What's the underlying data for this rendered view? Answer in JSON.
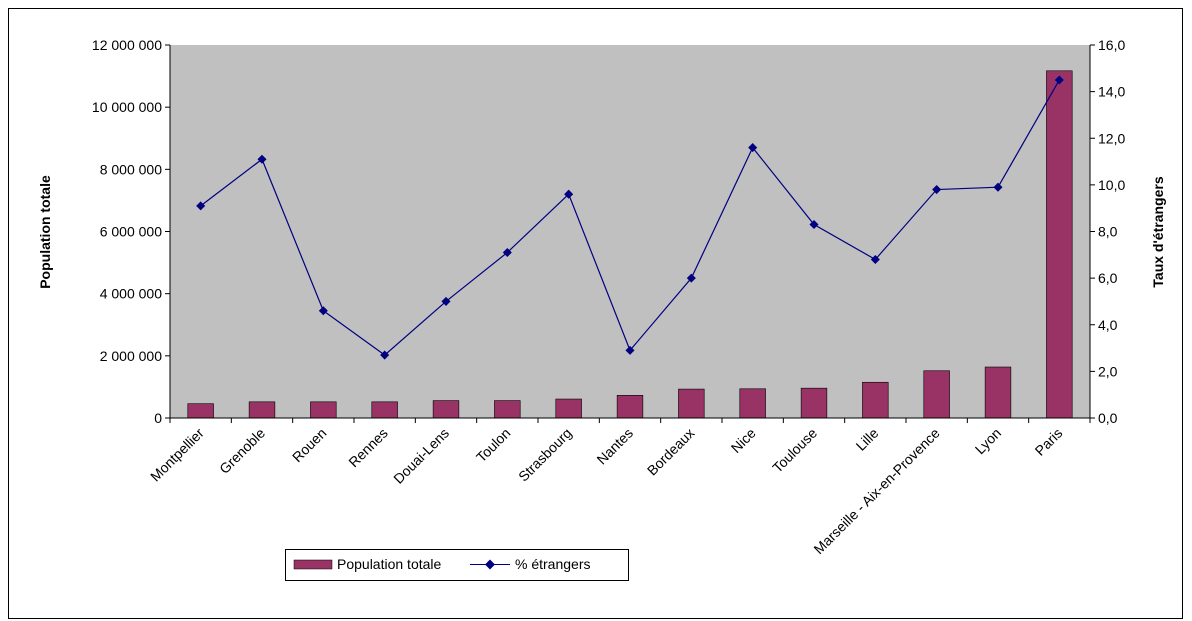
{
  "chart_data": {
    "type": "bar",
    "title": "",
    "categories": [
      "Montpellier",
      "Grenoble",
      "Rouen",
      "Rennes",
      "Douai-Lens",
      "Toulon",
      "Strasbourg",
      "Nantes",
      "Bordeaux",
      "Nice",
      "Toulouse",
      "Lille",
      "Marseille - Aix-en-Provence",
      "Lyon",
      "Paris"
    ],
    "series": [
      {
        "name": "Population totale",
        "type": "bar",
        "axis": "left",
        "color": "#993366",
        "values": [
          460000,
          520000,
          520000,
          520000,
          560000,
          560000,
          610000,
          730000,
          930000,
          940000,
          960000,
          1150000,
          1520000,
          1640000,
          11170000
        ]
      },
      {
        "name": "% étrangers",
        "type": "line",
        "axis": "right",
        "color": "#000080",
        "values": [
          9.1,
          11.1,
          4.6,
          2.7,
          5.0,
          7.1,
          9.6,
          2.9,
          6.0,
          11.6,
          8.3,
          6.8,
          9.8,
          9.9,
          14.5
        ]
      }
    ],
    "ylabel": "Population totale",
    "y2label": "Taux d'étrangers",
    "ylim": [
      0,
      12000000
    ],
    "y2lim": [
      0,
      16
    ],
    "yticks": [
      "0",
      "2 000 000",
      "4 000 000",
      "6 000 000",
      "8 000 000",
      "10 000 000",
      "12 000 000"
    ],
    "y2ticks": [
      "0,0",
      "2,0",
      "4,0",
      "6,0",
      "8,0",
      "10,0",
      "12,0",
      "14,0",
      "16,0"
    ],
    "grid": false,
    "legend_position": "bottom-left"
  },
  "colors": {
    "plot_background": "#c0c0c0",
    "bar": "#993366",
    "line": "#000080"
  }
}
